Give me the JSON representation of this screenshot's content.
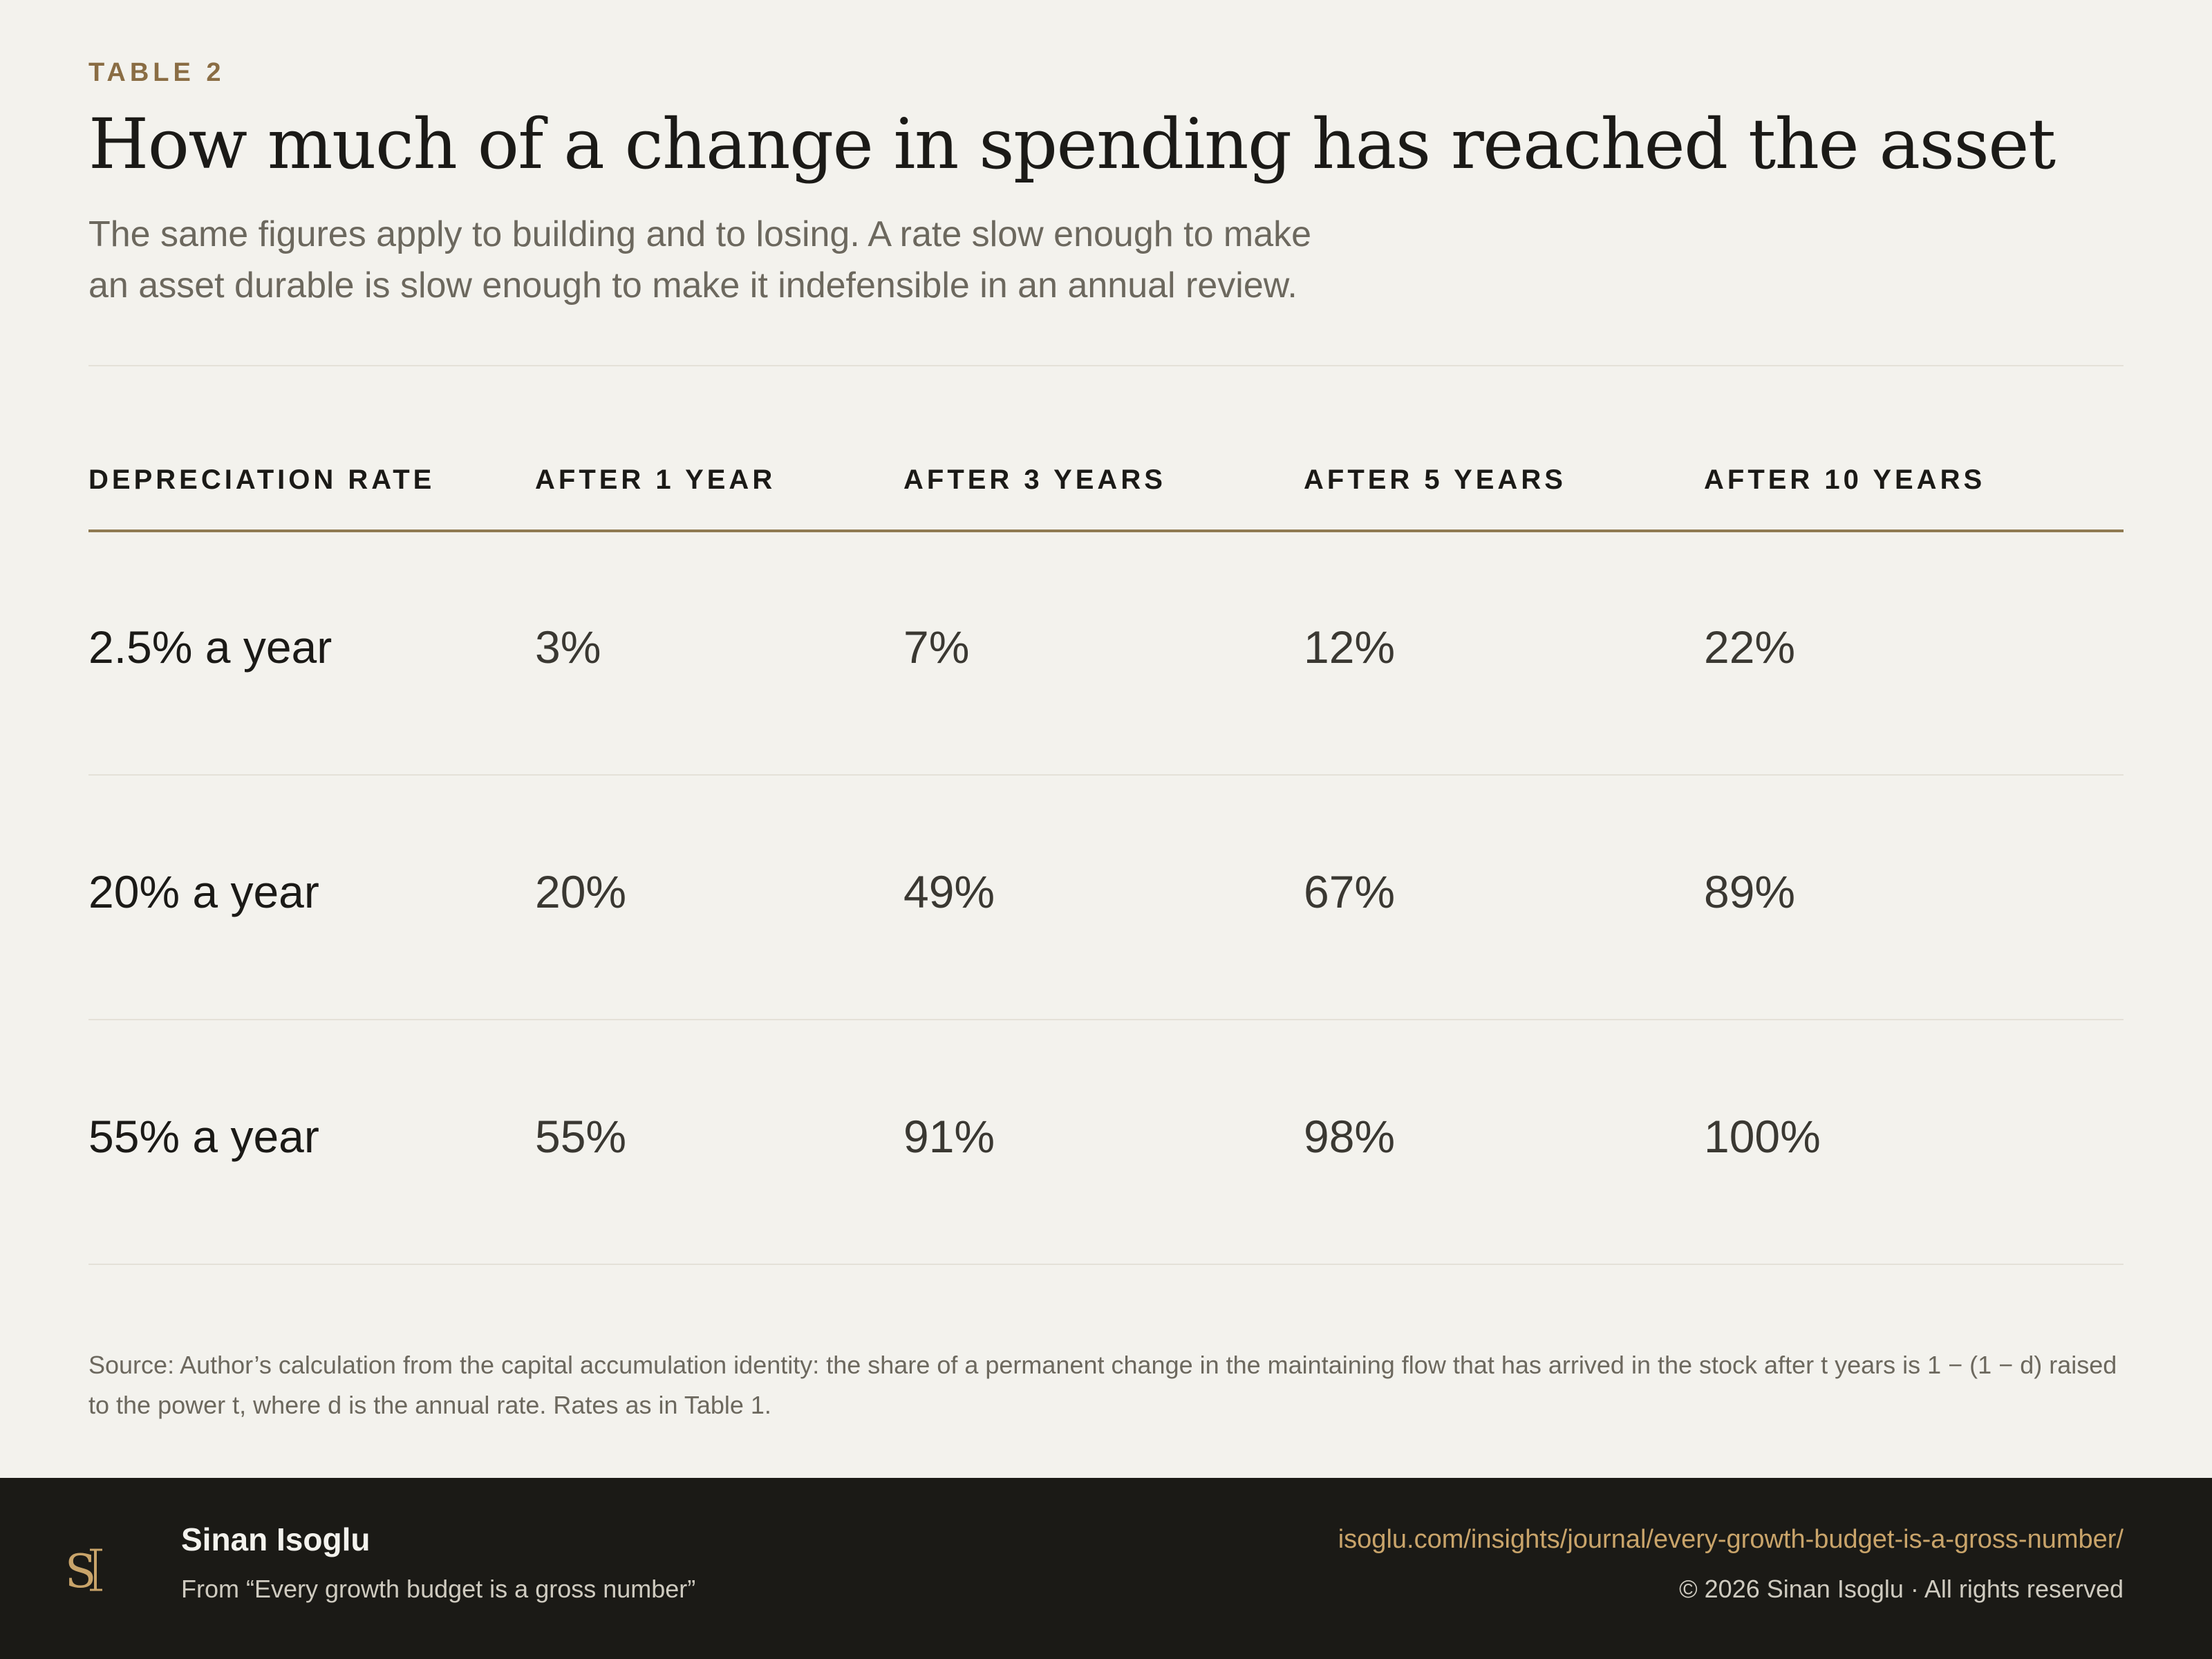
{
  "header": {
    "eyebrow": "TABLE 2",
    "title": "How much of a change in spending has reached the asset",
    "subtitle": "The same figures apply to building and to losing. A rate slow enough to make an asset durable is slow enough to make it indefensible in an annual review."
  },
  "table": {
    "columns": [
      "DEPRECIATION RATE",
      "AFTER 1 YEAR",
      "AFTER 3 YEARS",
      "AFTER 5 YEARS",
      "AFTER 10 YEARS"
    ],
    "rows": [
      [
        "2.5% a year",
        "3%",
        "7%",
        "12%",
        "22%"
      ],
      [
        "20% a year",
        "20%",
        "49%",
        "67%",
        "89%"
      ],
      [
        "55% a year",
        "55%",
        "91%",
        "98%",
        "100%"
      ]
    ]
  },
  "source": "Source: Author’s calculation from the capital accumulation identity: the share of a permanent change in the maintaining flow that has arrived in the stock after t years is 1 − (1 − d) raised to the power t, where d is the annual rate. Rates as in Table 1.",
  "footer": {
    "logo_icon": "si-monogram-icon",
    "author": "Sinan Isoglu",
    "from": "From “Every growth budget is a gross number”",
    "url": "isoglu.com/insights/journal/every-growth-budget-is-a-gross-number/",
    "copyright": "© 2026 Sinan Isoglu · All rights reserved",
    "accent_color": "#c9a46a"
  }
}
